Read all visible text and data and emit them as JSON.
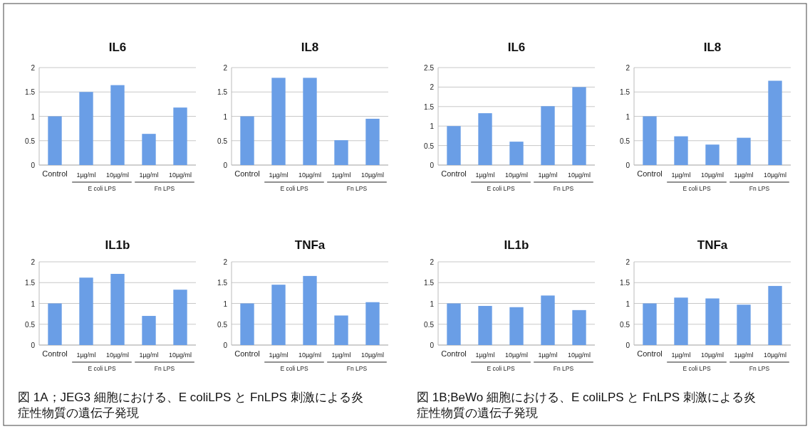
{
  "chart_data": [
    {
      "type": "bar",
      "title": "IL6",
      "categories": [
        "Control",
        "1µg/ml",
        "10µg/ml",
        "1µg/ml",
        "10µg/ml"
      ],
      "values": [
        1,
        1.5,
        1.64,
        0.64,
        1.18
      ],
      "color": "#6a9ee6",
      "ylim": [
        0,
        2
      ],
      "yticks": [
        0,
        0.5,
        1,
        1.5,
        2
      ],
      "grid": "y",
      "annotations": [
        "E coli LPS",
        "Fn LPS"
      ]
    },
    {
      "type": "bar",
      "title": "IL8",
      "categories": [
        "Control",
        "1µg/ml",
        "10µg/ml",
        "1µg/ml",
        "10µg/ml"
      ],
      "values": [
        1,
        1.79,
        1.79,
        0.51,
        0.95
      ],
      "color": "#6a9ee6",
      "ylim": [
        0,
        2
      ],
      "yticks": [
        0,
        0.5,
        1,
        1.5,
        2
      ],
      "grid": "y",
      "annotations": [
        "E coli LPS",
        "Fn LPS"
      ]
    },
    {
      "type": "bar",
      "title": "IL6",
      "categories": [
        "Control",
        "1µg/ml",
        "10µg/ml",
        "1µg/ml",
        "10µg/ml"
      ],
      "values": [
        1,
        1.33,
        0.6,
        1.51,
        2.0
      ],
      "color": "#6a9ee6",
      "ylim": [
        0,
        2.5
      ],
      "yticks": [
        0,
        0.5,
        1,
        1.5,
        2,
        2.5
      ],
      "grid": "y",
      "annotations": [
        "E coli LPS",
        "Fn LPS"
      ]
    },
    {
      "type": "bar",
      "title": "IL8",
      "categories": [
        "Control",
        "1µg/ml",
        "10µg/ml",
        "1µg/ml",
        "10µg/ml"
      ],
      "values": [
        1,
        0.59,
        0.42,
        0.56,
        1.73
      ],
      "color": "#6a9ee6",
      "ylim": [
        0,
        2
      ],
      "yticks": [
        0,
        0.5,
        1,
        1.5,
        2
      ],
      "grid": "y",
      "annotations": [
        "E coli LPS",
        "Fn LPS"
      ]
    },
    {
      "type": "bar",
      "title": "IL1b",
      "categories": [
        "Control",
        "1µg/ml",
        "10µg/ml",
        "1µg/ml",
        "10µg/ml"
      ],
      "values": [
        1,
        1.62,
        1.71,
        0.7,
        1.33
      ],
      "color": "#6a9ee6",
      "ylim": [
        0,
        2
      ],
      "yticks": [
        0,
        0.5,
        1,
        1.5,
        2
      ],
      "grid": "y",
      "annotations": [
        "E coli LPS",
        "Fn LPS",
        "図 1A；JEG3 細胞における、E coliLPS と FnLPS 刺激による炎症性物質の遺伝子発現"
      ]
    },
    {
      "type": "bar",
      "title": "TNFa",
      "categories": [
        "Control",
        "1µg/ml",
        "10µg/ml",
        "1µg/ml",
        "10µg/ml"
      ],
      "values": [
        1,
        1.45,
        1.66,
        0.71,
        1.03
      ],
      "color": "#6a9ee6",
      "ylim": [
        0,
        2
      ],
      "yticks": [
        0,
        0.5,
        1,
        1.5,
        2
      ],
      "grid": "y",
      "annotations": [
        "E coli LPS",
        "Fn LPS"
      ]
    },
    {
      "type": "bar",
      "title": "IL1b",
      "categories": [
        "Control",
        "1µg/ml",
        "10µg/ml",
        "1µg/ml",
        "10µg/ml"
      ],
      "values": [
        1,
        0.94,
        0.91,
        1.19,
        0.84
      ],
      "color": "#6a9ee6",
      "ylim": [
        0,
        2
      ],
      "yticks": [
        0,
        0.5,
        1,
        1.5,
        2
      ],
      "grid": "y",
      "annotations": [
        "E coli LPS",
        "Fn LPS",
        "図 1B;BeWo 細胞における、E coliLPS と FnLPS 刺激による炎症性物質の遺伝子発現"
      ]
    },
    {
      "type": "bar",
      "title": "TNFa",
      "categories": [
        "Control",
        "1µg/ml",
        "10µg/ml",
        "1µg/ml",
        "10µg/ml"
      ],
      "values": [
        1,
        1.14,
        1.12,
        0.97,
        1.42
      ],
      "color": "#6a9ee6",
      "ylim": [
        0,
        2
      ],
      "yticks": [
        0,
        0.5,
        1,
        1.5,
        2
      ],
      "grid": "y",
      "annotations": [
        "E coli LPS",
        "Fn LPS"
      ]
    }
  ]
}
